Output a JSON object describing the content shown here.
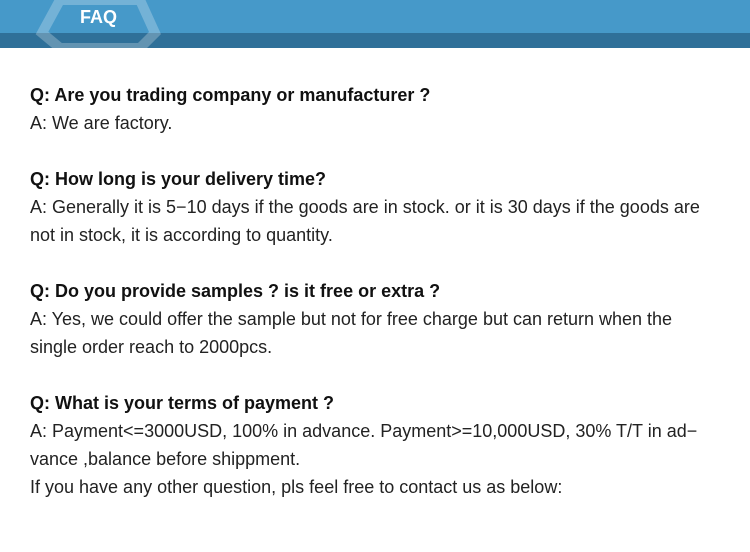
{
  "header": {
    "title": "FAQ"
  },
  "faq": [
    {
      "q": "Q: Are you trading company or manufacturer ?",
      "a": [
        "A: We are factory."
      ]
    },
    {
      "q": "Q: How long is your delivery time?",
      "a": [
        "A: Generally it is 5−10 days if the goods are in stock. or it is 30 days if the goods are",
        "not in stock, it is according to quantity."
      ]
    },
    {
      "q": "Q: Do you provide samples ? is it free or extra ?",
      "a": [
        "A: Yes, we could offer the sample but not for free charge but can return when the",
        "single order reach to 2000pcs."
      ]
    },
    {
      "q": "Q: What is your terms of payment ?",
      "a": [
        "A: Payment<=3000USD, 100% in advance. Payment>=10,000USD, 30% T/T in ad−",
        "vance ,balance before shippment.",
        "If you have any other question, pls feel free to contact us as below:"
      ]
    }
  ]
}
